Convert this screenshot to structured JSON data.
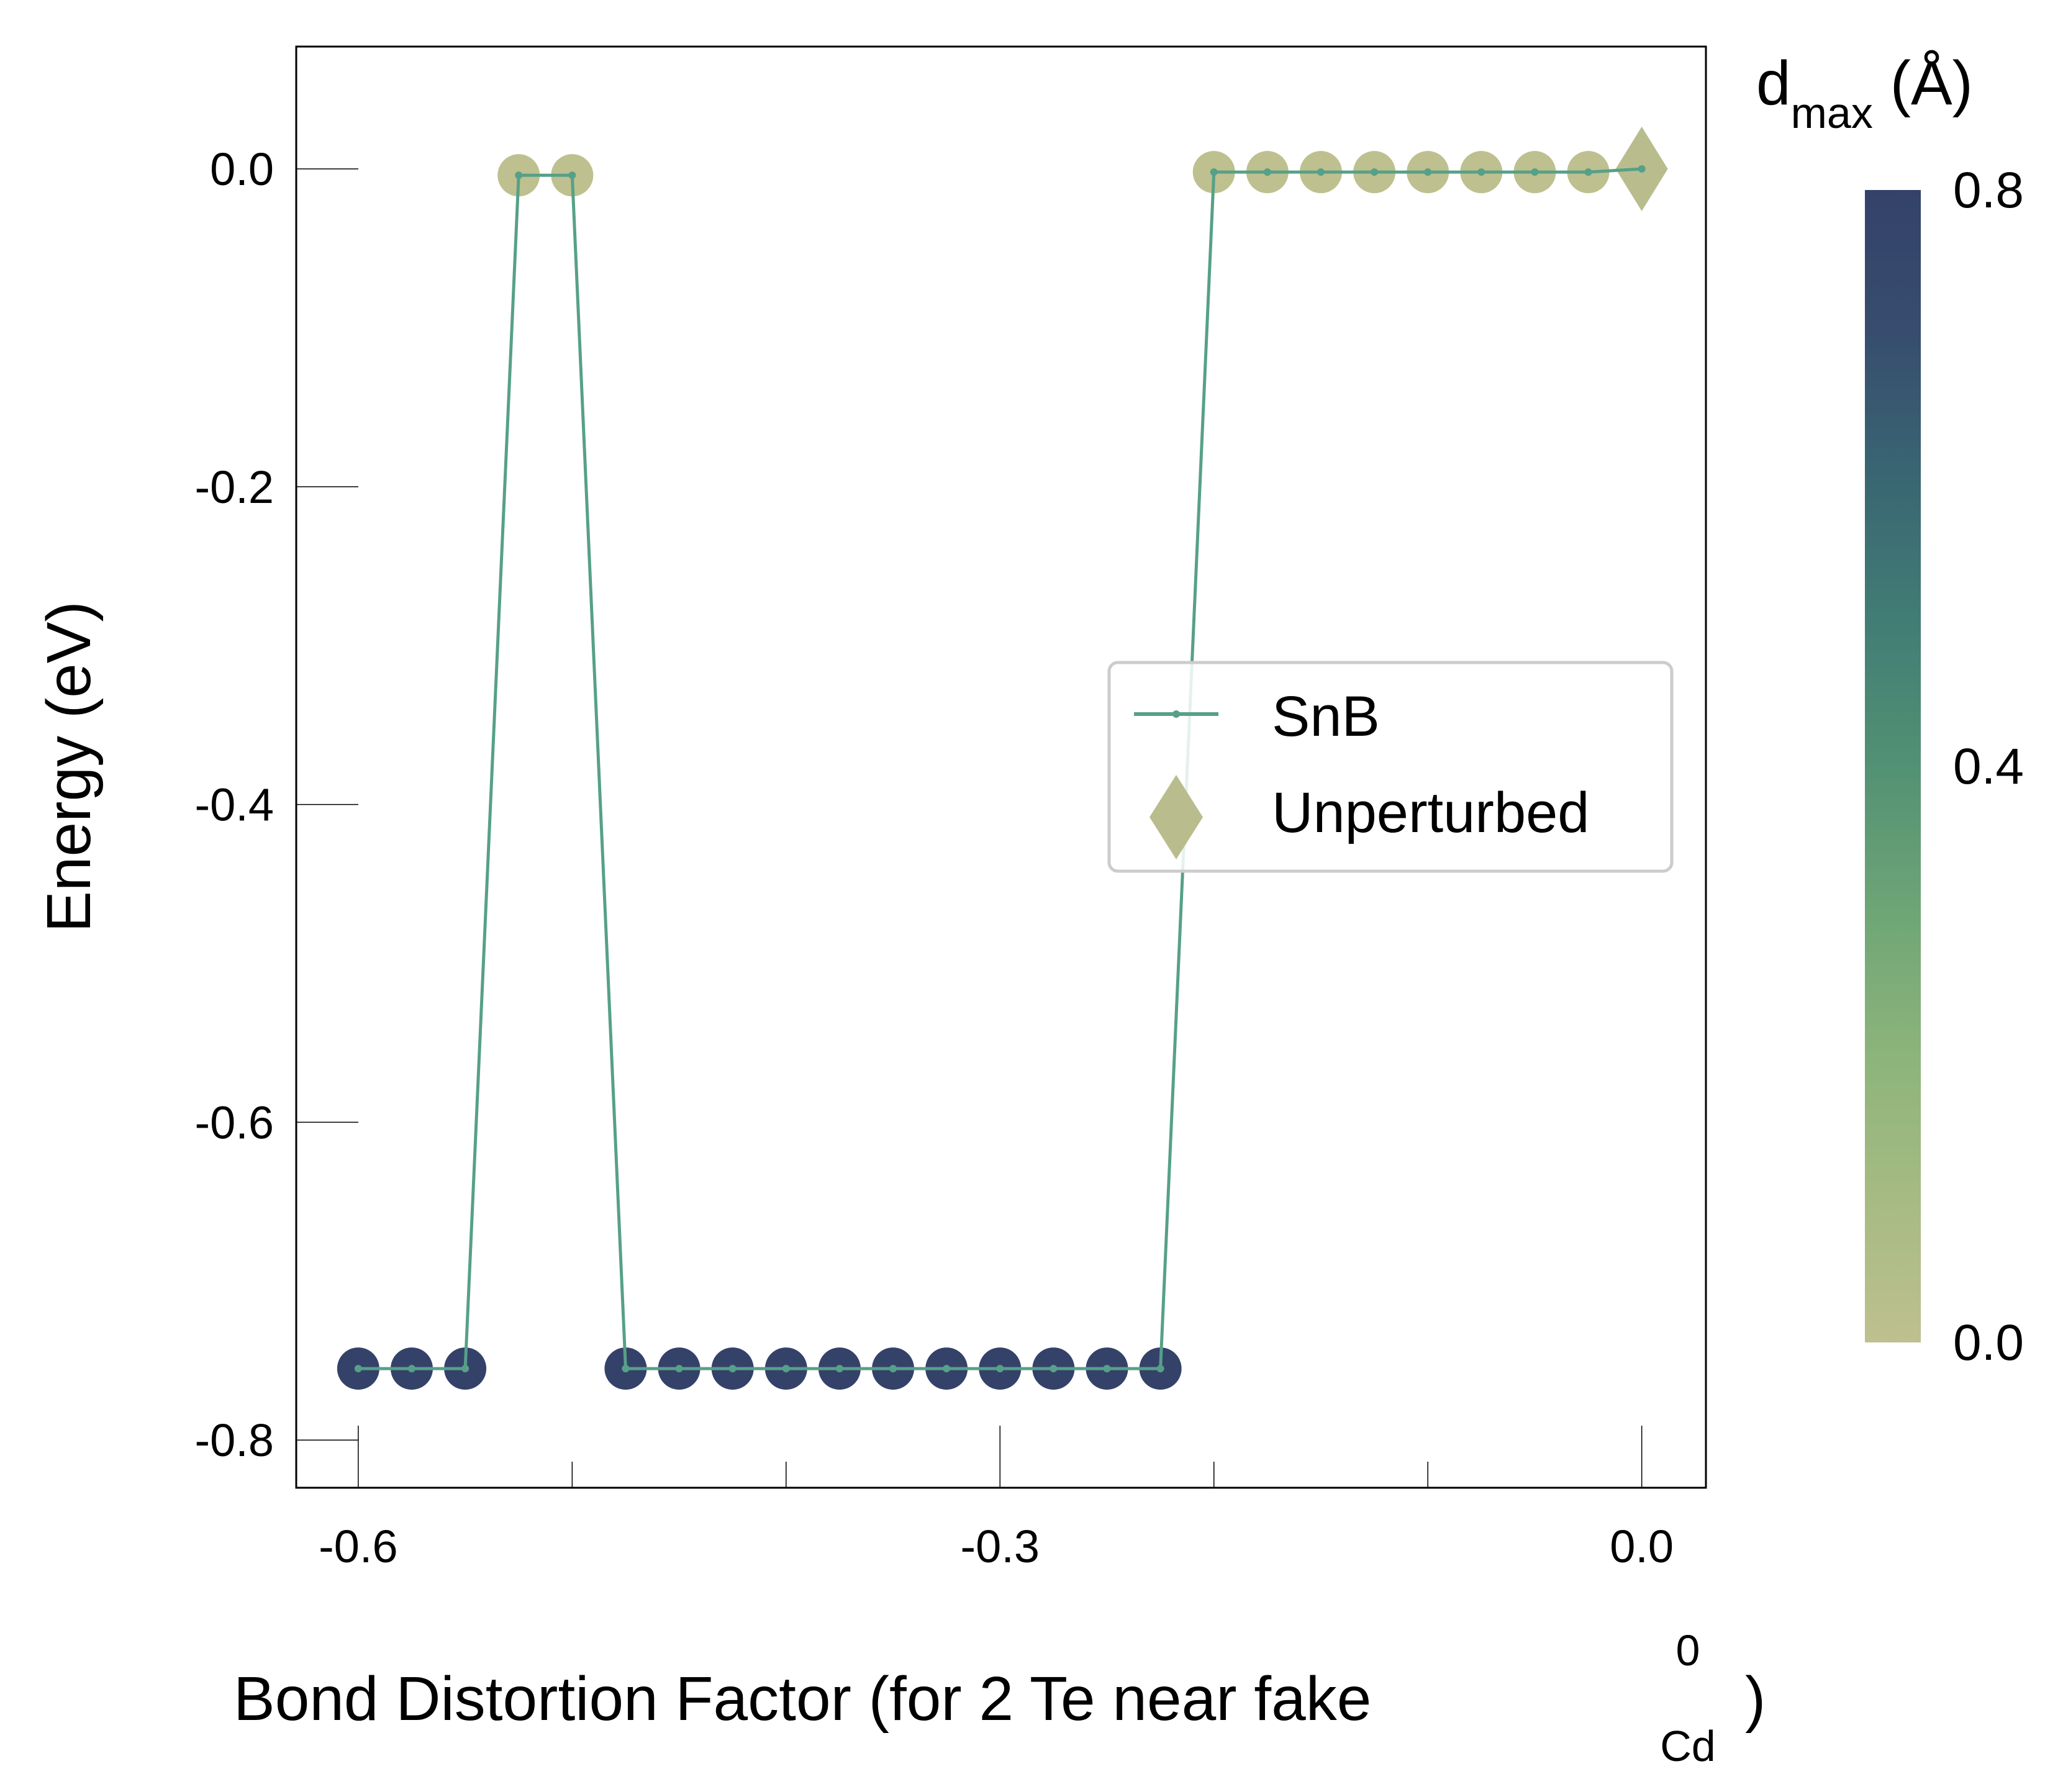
{
  "chart_data": {
    "type": "scatter",
    "xlabel_main": "Bond Distortion Factor (for 2 Te near fake",
    "xlabel_subscript": "Cd",
    "xlabel_superscript": "0",
    "xlabel_close": ")",
    "ylabel": "Energy (eV)",
    "xlim": [
      -0.629,
      0.03
    ],
    "ylim": [
      -0.83,
      0.077
    ],
    "x_ticks": [
      -0.6,
      -0.3,
      0.0
    ],
    "x_tick_labels": [
      "-0.6",
      "-0.3",
      "0.0"
    ],
    "x_minor_ticks": [
      -0.5,
      -0.4,
      -0.2,
      -0.1
    ],
    "y_ticks": [
      0.0,
      -0.2,
      -0.4,
      -0.6,
      -0.8
    ],
    "y_tick_labels": [
      "0.0",
      "-0.2",
      "-0.4",
      "-0.6",
      "-0.8"
    ],
    "grid": false,
    "series": [
      {
        "name": "SnB",
        "color": "#57a088",
        "points": [
          {
            "x": -0.6,
            "y": -0.755,
            "d": 0.8
          },
          {
            "x": -0.575,
            "y": -0.755,
            "d": 0.8
          },
          {
            "x": -0.55,
            "y": -0.755,
            "d": 0.8
          },
          {
            "x": -0.525,
            "y": -0.004,
            "d": 0.0
          },
          {
            "x": -0.5,
            "y": -0.004,
            "d": 0.0
          },
          {
            "x": -0.475,
            "y": -0.755,
            "d": 0.8
          },
          {
            "x": -0.45,
            "y": -0.755,
            "d": 0.8
          },
          {
            "x": -0.425,
            "y": -0.755,
            "d": 0.8
          },
          {
            "x": -0.4,
            "y": -0.755,
            "d": 0.8
          },
          {
            "x": -0.375,
            "y": -0.755,
            "d": 0.8
          },
          {
            "x": -0.35,
            "y": -0.755,
            "d": 0.8
          },
          {
            "x": -0.325,
            "y": -0.755,
            "d": 0.8
          },
          {
            "x": -0.3,
            "y": -0.755,
            "d": 0.8
          },
          {
            "x": -0.275,
            "y": -0.755,
            "d": 0.8
          },
          {
            "x": -0.25,
            "y": -0.755,
            "d": 0.8
          },
          {
            "x": -0.225,
            "y": -0.755,
            "d": 0.8
          },
          {
            "x": -0.2,
            "y": -0.002,
            "d": 0.0
          },
          {
            "x": -0.175,
            "y": -0.002,
            "d": 0.0
          },
          {
            "x": -0.15,
            "y": -0.002,
            "d": 0.0
          },
          {
            "x": -0.125,
            "y": -0.002,
            "d": 0.0
          },
          {
            "x": -0.1,
            "y": -0.002,
            "d": 0.0
          },
          {
            "x": -0.075,
            "y": -0.002,
            "d": 0.0
          },
          {
            "x": -0.05,
            "y": -0.002,
            "d": 0.0
          },
          {
            "x": -0.025,
            "y": -0.002,
            "d": 0.0
          }
        ]
      },
      {
        "name": "Unperturbed",
        "color": "#b9bd8d",
        "marker": "diamond",
        "points": [
          {
            "x": 0.0,
            "y": 0.0
          }
        ]
      }
    ],
    "legend": {
      "placement": "center-right",
      "entries": [
        "SnB",
        "Unperturbed"
      ]
    },
    "colorbar": {
      "label_main": "d",
      "label_subscript": "max",
      "label_unit": " (Å)",
      "range": [
        0.0,
        0.8
      ],
      "tick_values": [
        0.8,
        0.4,
        0.0
      ],
      "tick_labels": [
        "0.8",
        "0.4",
        "0.0"
      ],
      "colors_low_to_high": [
        "#bec08f",
        "#a6bb83",
        "#8cb47b",
        "#6ea576",
        "#539174",
        "#427d75",
        "#396672",
        "#374d6e",
        "#34426a"
      ]
    }
  }
}
